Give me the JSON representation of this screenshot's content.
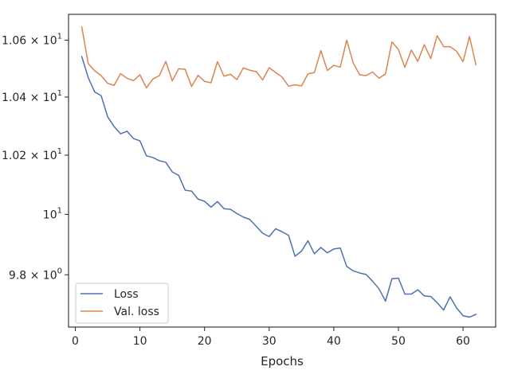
{
  "chart_data": {
    "type": "line",
    "title": "",
    "xlabel": "Epochs",
    "ylabel": "",
    "xlim": [
      -1.05,
      65.05
    ],
    "ylim": [
      9.63,
      10.692
    ],
    "yscale": "log",
    "grid": false,
    "legend_position": "lower-left",
    "x_ticks": [
      0,
      10,
      20,
      30,
      40,
      50,
      60
    ],
    "x_tick_labels": [
      "0",
      "10",
      "20",
      "30",
      "40",
      "50",
      "60"
    ],
    "y_ticks": [
      9.8,
      10,
      10.2,
      10.4,
      10.6
    ],
    "y_tick_labels": [
      {
        "base": "9.8 × 10",
        "exp": "0"
      },
      {
        "base": "10",
        "exp": "1"
      },
      {
        "base": "1.02 × 10",
        "exp": "1"
      },
      {
        "base": "1.04 × 10",
        "exp": "1"
      },
      {
        "base": "1.06 × 10",
        "exp": "1"
      }
    ],
    "x": [
      1,
      2,
      3,
      4,
      5,
      6,
      7,
      8,
      9,
      10,
      11,
      12,
      13,
      14,
      15,
      16,
      17,
      18,
      19,
      20,
      21,
      22,
      23,
      24,
      25,
      26,
      27,
      28,
      29,
      30,
      31,
      32,
      33,
      34,
      35,
      36,
      37,
      38,
      39,
      40,
      41,
      42,
      43,
      44,
      45,
      46,
      47,
      48,
      49,
      50,
      51,
      52,
      53,
      54,
      55,
      56,
      57,
      58,
      59,
      60,
      61,
      62
    ],
    "series": [
      {
        "name": "Loss",
        "color": "#4c72b0",
        "values": [
          10.542,
          10.468,
          10.418,
          10.405,
          10.332,
          10.298,
          10.273,
          10.282,
          10.257,
          10.249,
          10.198,
          10.192,
          10.181,
          10.176,
          10.143,
          10.131,
          10.081,
          10.078,
          10.051,
          10.044,
          10.024,
          10.043,
          10.019,
          10.017,
          10.003,
          9.991,
          9.983,
          9.96,
          9.937,
          9.926,
          9.952,
          9.942,
          9.93,
          9.861,
          9.878,
          9.912,
          9.869,
          9.89,
          9.872,
          9.885,
          9.888,
          9.827,
          9.813,
          9.806,
          9.801,
          9.779,
          9.754,
          9.714,
          9.787,
          9.789,
          9.737,
          9.737,
          9.751,
          9.731,
          9.729,
          9.709,
          9.685,
          9.728,
          9.692,
          9.667,
          9.662,
          9.671
        ]
      },
      {
        "name": "Val. loss",
        "color": "#dd8452",
        "values": [
          10.647,
          10.517,
          10.492,
          10.475,
          10.448,
          10.441,
          10.482,
          10.466,
          10.457,
          10.478,
          10.432,
          10.463,
          10.475,
          10.525,
          10.457,
          10.499,
          10.497,
          10.437,
          10.476,
          10.455,
          10.45,
          10.524,
          10.473,
          10.48,
          10.461,
          10.502,
          10.494,
          10.489,
          10.46,
          10.503,
          10.486,
          10.47,
          10.438,
          10.443,
          10.439,
          10.481,
          10.486,
          10.563,
          10.493,
          10.511,
          10.505,
          10.6,
          10.52,
          10.478,
          10.475,
          10.488,
          10.466,
          10.481,
          10.594,
          10.567,
          10.504,
          10.565,
          10.525,
          10.584,
          10.535,
          10.616,
          10.577,
          10.577,
          10.561,
          10.524,
          10.613,
          10.513
        ]
      }
    ]
  }
}
